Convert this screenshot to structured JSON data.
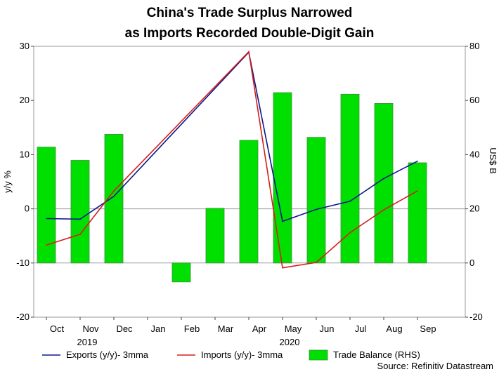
{
  "chart_data": {
    "type": "bar+line",
    "title_lines": [
      "China's Trade Surplus Narrowed",
      "as Imports Recorded Double-Digit Gain"
    ],
    "categories": [
      "Oct",
      "Nov",
      "Dec",
      "Jan",
      "Feb",
      "Mar",
      "Apr",
      "May",
      "Jun",
      "Jul",
      "Aug",
      "Sep"
    ],
    "year_labels": [
      {
        "label": "2019",
        "category": "Nov"
      },
      {
        "label": "2020",
        "category": "May"
      }
    ],
    "ylabel_left": "y/y %",
    "ylabel_right": "US$ B",
    "ylim_left": [
      -20,
      30
    ],
    "ylim_right": [
      -20,
      80
    ],
    "yticks_left": [
      -20,
      -10,
      0,
      10,
      20,
      30
    ],
    "yticks_right": [
      -20,
      0,
      20,
      40,
      60,
      80
    ],
    "series": [
      {
        "name": "Exports (y/y)- 3mma",
        "type": "line",
        "axis": "left",
        "color": "#0a1a8c",
        "points": [
          {
            "category": "Oct",
            "value": -1.8
          },
          {
            "category": "Nov",
            "value": -1.9
          },
          {
            "category": "Dec",
            "value": 2.3
          },
          {
            "category": "Apr",
            "value": 28.9
          },
          {
            "category": "May",
            "value": -2.3
          },
          {
            "category": "Jun",
            "value": -0.1
          },
          {
            "category": "Jul",
            "value": 1.4
          },
          {
            "category": "Aug",
            "value": 5.6
          },
          {
            "category": "Sep",
            "value": 8.8
          }
        ]
      },
      {
        "name": "Imports (y/y)- 3mma",
        "type": "line",
        "axis": "left",
        "color": "#d81c1c",
        "points": [
          {
            "category": "Oct",
            "value": -6.7
          },
          {
            "category": "Nov",
            "value": -4.7
          },
          {
            "category": "Dec",
            "value": 3.3
          },
          {
            "category": "Apr",
            "value": 29.0
          },
          {
            "category": "May",
            "value": -10.9
          },
          {
            "category": "Jun",
            "value": -9.9
          },
          {
            "category": "Jul",
            "value": -4.4
          },
          {
            "category": "Aug",
            "value": -0.2
          },
          {
            "category": "Sep",
            "value": 3.3
          }
        ]
      },
      {
        "name": "Trade Balance (RHS)",
        "type": "bar",
        "axis": "right",
        "color": "#00e000",
        "values": [
          42.8,
          37.9,
          47.5,
          null,
          -7.0,
          20.2,
          45.3,
          62.9,
          46.4,
          62.3,
          58.9,
          37.0
        ]
      }
    ],
    "source": "Source: Refinitiv Datastream"
  }
}
